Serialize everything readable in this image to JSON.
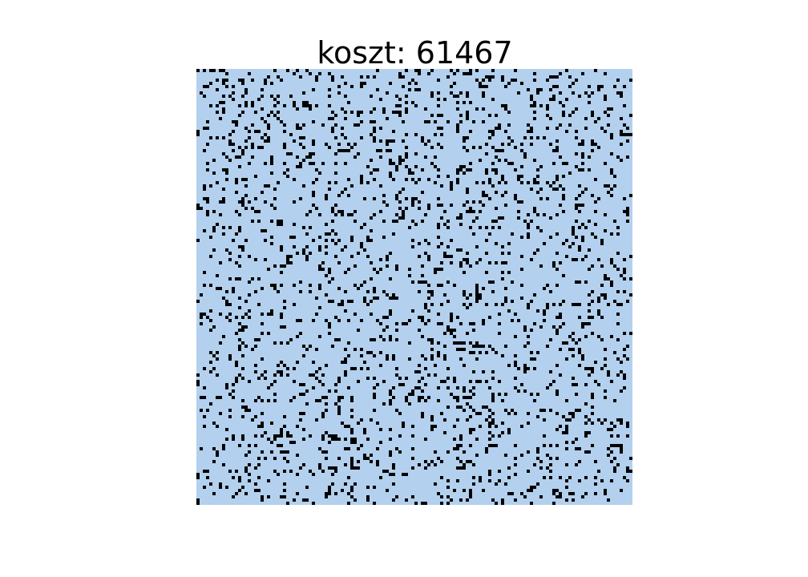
{
  "chart_data": {
    "type": "heatmap",
    "title": "koszt: 61467",
    "xlabel": "",
    "ylabel": "",
    "grid": false,
    "axes_visible": false,
    "rows": 136,
    "cols": 136,
    "values": [
      0,
      1
    ],
    "colors": {
      "0": "#b3d1ee",
      "1": "#000000"
    },
    "fill_fraction": 0.13,
    "seed": 61467
  }
}
